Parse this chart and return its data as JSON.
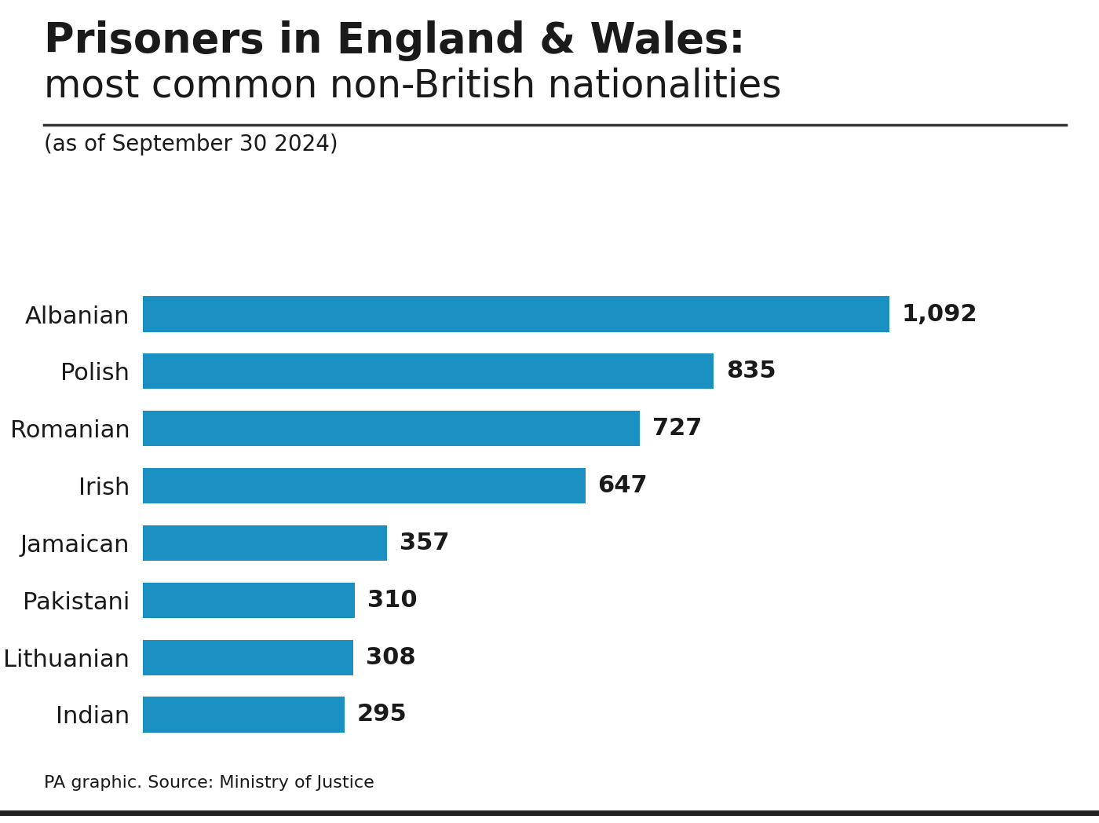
{
  "title_line1": "Prisoners in England & Wales:",
  "title_line2": "most common non-British nationalities",
  "subtitle": "(as of September 30 2024)",
  "source": "PA graphic. Source: Ministry of Justice",
  "categories": [
    "Albanian",
    "Polish",
    "Romanian",
    "Irish",
    "Jamaican",
    "Pakistani",
    "Lithuanian",
    "Indian"
  ],
  "values": [
    1092,
    835,
    727,
    647,
    357,
    310,
    308,
    295
  ],
  "value_labels": [
    "1,092",
    "835",
    "727",
    "647",
    "357",
    "310",
    "308",
    "295"
  ],
  "bar_color": "#1a8fc1",
  "background_color": "#ffffff",
  "text_color": "#1a1a1a",
  "xlim": [
    0,
    1350
  ],
  "bar_height": 0.62,
  "title1_fontsize": 38,
  "title2_fontsize": 35,
  "subtitle_fontsize": 20,
  "ylabel_fontsize": 22,
  "value_fontsize": 22,
  "source_fontsize": 16
}
